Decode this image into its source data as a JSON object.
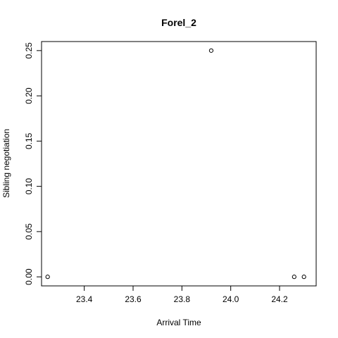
{
  "chart_data": {
    "type": "scatter",
    "title": "Forel_2",
    "xlabel": "Arrival Time",
    "ylabel": "Sibling negotiation",
    "xlim": [
      23.225,
      24.35
    ],
    "ylim": [
      -0.01,
      0.26
    ],
    "x_ticks": [
      23.4,
      23.6,
      23.8,
      24.0,
      24.2
    ],
    "x_tick_labels": [
      "23.4",
      "23.6",
      "23.8",
      "24.0",
      "24.2"
    ],
    "y_ticks": [
      0.0,
      0.05,
      0.1,
      0.15,
      0.2,
      0.25
    ],
    "y_tick_labels": [
      "0.00",
      "0.05",
      "0.10",
      "0.15",
      "0.20",
      "0.25"
    ],
    "grid": false,
    "points": [
      {
        "x": 23.25,
        "y": 0.0
      },
      {
        "x": 23.92,
        "y": 0.25
      },
      {
        "x": 24.26,
        "y": 0.0
      },
      {
        "x": 24.3,
        "y": 0.0
      }
    ],
    "marker": "open-circle",
    "color": "#000000"
  }
}
